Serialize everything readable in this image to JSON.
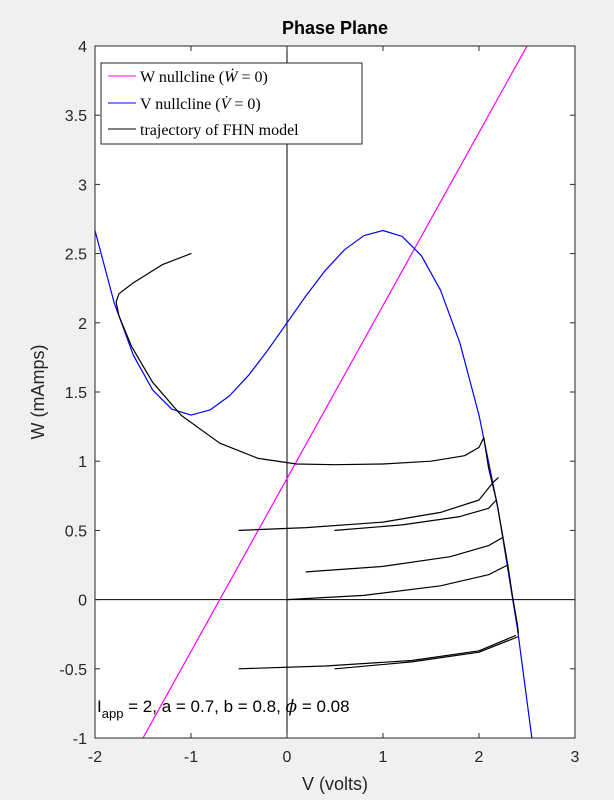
{
  "chart_data": {
    "type": "line",
    "title": "Phase Plane",
    "xlabel": "V (volts)",
    "ylabel": "W (mAmps)",
    "xlim": [
      -2,
      3
    ],
    "ylim": [
      -1,
      4
    ],
    "xticks": [
      -2,
      -1,
      0,
      1,
      2,
      3
    ],
    "yticks": [
      -1,
      -0.5,
      0,
      0.5,
      1,
      1.5,
      2,
      2.5,
      3,
      3.5,
      4
    ],
    "xtick_labels": [
      "-2",
      "-1",
      "0",
      "1",
      "2",
      "3"
    ],
    "ytick_labels": [
      "-1",
      "-0.5",
      "0",
      "0.5",
      "1",
      "1.5",
      "2",
      "2.5",
      "3",
      "3.5",
      "4"
    ],
    "grid": false,
    "legend_position": "top-left",
    "parameters": {
      "I_app": 2,
      "a": 0.7,
      "b": 0.8,
      "phi": 0.08
    },
    "annotation": {
      "I": "I",
      "sub": "app",
      "rest": " = 2, a = 0.7, b = 0.8, ",
      "phi": "ϕ",
      "tail": " = 0.08"
    },
    "series": [
      {
        "key": "w_nullcline",
        "name": "W nullcline (Ẇ = 0)",
        "legend_text": "W nullcline (",
        "legend_math": "Ẇ",
        "legend_tail": " = 0)",
        "color": "#ff00ff",
        "points": [
          [
            -2.0,
            -1.625
          ],
          [
            3.0,
            4.625
          ]
        ]
      },
      {
        "key": "v_nullcline",
        "name": "V nullcline (V̇ = 0)",
        "legend_text": "V nullcline (",
        "legend_math": "V̇",
        "legend_tail": " = 0)",
        "color": "#0000ff",
        "points": [
          [
            -2.0,
            2.667
          ],
          [
            -1.8,
            2.144
          ],
          [
            -1.6,
            1.765
          ],
          [
            -1.4,
            1.515
          ],
          [
            -1.2,
            1.376
          ],
          [
            -1.0,
            1.333
          ],
          [
            -0.8,
            1.371
          ],
          [
            -0.6,
            1.472
          ],
          [
            -0.4,
            1.621
          ],
          [
            -0.2,
            1.803
          ],
          [
            0.0,
            2.0
          ],
          [
            0.2,
            2.197
          ],
          [
            0.4,
            2.379
          ],
          [
            0.6,
            2.528
          ],
          [
            0.8,
            2.629
          ],
          [
            1.0,
            2.667
          ],
          [
            1.2,
            2.624
          ],
          [
            1.4,
            2.485
          ],
          [
            1.6,
            2.235
          ],
          [
            1.8,
            1.856
          ],
          [
            2.0,
            1.333
          ],
          [
            2.2,
            0.651
          ],
          [
            2.4,
            -0.208
          ],
          [
            2.6,
            -1.259
          ]
        ]
      },
      {
        "key": "trajectory",
        "name": "trajectory of FHN model",
        "legend_text": "trajectory of FHN model",
        "color": "#000000",
        "segments": [
          [
            [
              -1.0,
              2.5
            ],
            [
              -1.3,
              2.42
            ],
            [
              -1.6,
              2.29
            ],
            [
              -1.75,
              2.21
            ],
            [
              -1.78,
              2.15
            ],
            [
              -1.75,
              2.05
            ],
            [
              -1.62,
              1.83
            ],
            [
              -1.4,
              1.57
            ],
            [
              -1.1,
              1.33
            ],
            [
              -0.7,
              1.13
            ],
            [
              -0.3,
              1.02
            ],
            [
              0.1,
              0.98
            ],
            [
              0.5,
              0.975
            ],
            [
              1.0,
              0.98
            ],
            [
              1.5,
              1.0
            ],
            [
              1.85,
              1.04
            ],
            [
              2.0,
              1.1
            ],
            [
              2.05,
              1.17
            ]
          ],
          [
            [
              -0.5,
              0.5
            ],
            [
              0.2,
              0.52
            ],
            [
              1.0,
              0.56
            ],
            [
              1.6,
              0.63
            ],
            [
              2.0,
              0.72
            ],
            [
              2.15,
              0.85
            ],
            [
              2.2,
              0.88
            ]
          ],
          [
            [
              0.5,
              0.5
            ],
            [
              1.2,
              0.54
            ],
            [
              1.8,
              0.6
            ],
            [
              2.1,
              0.66
            ],
            [
              2.18,
              0.72
            ]
          ],
          [
            [
              0.2,
              0.2
            ],
            [
              1.0,
              0.24
            ],
            [
              1.7,
              0.31
            ],
            [
              2.1,
              0.39
            ],
            [
              2.25,
              0.45
            ]
          ],
          [
            [
              0.0,
              0.0
            ],
            [
              0.8,
              0.03
            ],
            [
              1.6,
              0.1
            ],
            [
              2.1,
              0.18
            ],
            [
              2.3,
              0.25
            ]
          ],
          [
            [
              -0.5,
              -0.5
            ],
            [
              0.4,
              -0.48
            ],
            [
              1.3,
              -0.44
            ],
            [
              2.0,
              -0.37
            ],
            [
              2.38,
              -0.26
            ]
          ],
          [
            [
              0.5,
              -0.5
            ],
            [
              1.3,
              -0.45
            ],
            [
              2.0,
              -0.38
            ],
            [
              2.4,
              -0.27
            ]
          ],
          [
            [
              2.05,
              1.17
            ],
            [
              2.1,
              0.95
            ],
            [
              2.18,
              0.72
            ],
            [
              2.25,
              0.45
            ],
            [
              2.3,
              0.25
            ],
            [
              2.35,
              0.02
            ],
            [
              2.4,
              -0.18
            ],
            [
              2.41,
              -0.24
            ]
          ]
        ]
      }
    ]
  }
}
